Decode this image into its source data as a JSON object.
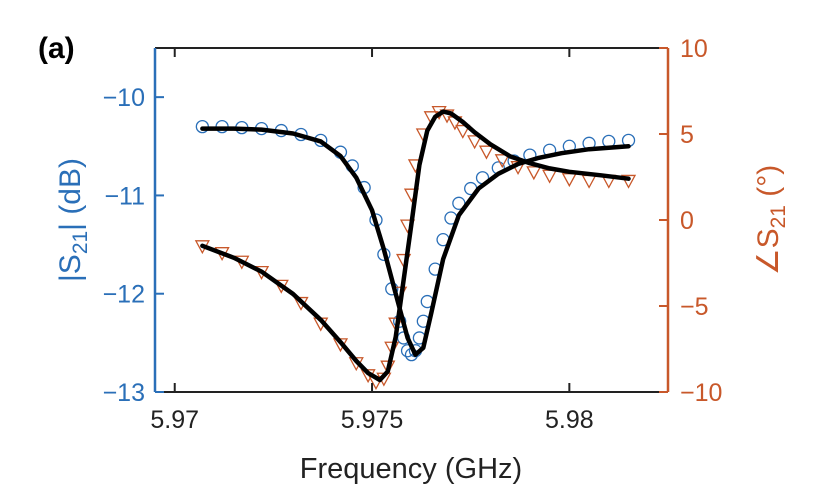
{
  "chart_data": {
    "type": "line",
    "panel_label": "(a)",
    "xlabel": "Frequency (GHz)",
    "ylabel_left": {
      "prefix": "|S",
      "sub": "21",
      "suffix": "| (dB)"
    },
    "ylabel_right": {
      "prefix": "∠S",
      "sub": "21",
      "suffix": " (°)"
    },
    "xlim": [
      5.9695,
      5.9825
    ],
    "ylim_left": [
      -13,
      -9.5
    ],
    "ylim_right": [
      -10,
      10
    ],
    "xticks": [
      5.97,
      5.975,
      5.98
    ],
    "xtick_labels": [
      "5.97",
      "5.975",
      "5.98"
    ],
    "yticks_left": [
      -13,
      -12,
      -11,
      -10
    ],
    "ytick_labels_left": [
      "−13",
      "−12",
      "−11",
      "−10"
    ],
    "yticks_right": [
      -10,
      -5,
      0,
      5,
      10
    ],
    "ytick_labels_right": [
      "−10",
      "−5",
      "0",
      "5",
      "10"
    ],
    "colors": {
      "left_axis": "#2a6fb8",
      "right_axis": "#c8582a",
      "fit": "#000000",
      "frame": "#222222"
    },
    "series": [
      {
        "axis": "left",
        "style": "marker-circle",
        "x": [
          5.9707,
          5.9712,
          5.9717,
          5.9722,
          5.9727,
          5.9732,
          5.9737,
          5.9742,
          5.9745,
          5.9748,
          5.9751,
          5.9753,
          5.9755,
          5.9757,
          5.9758,
          5.9759,
          5.976,
          5.9761,
          5.9762,
          5.9763,
          5.9764,
          5.9766,
          5.9768,
          5.977,
          5.9772,
          5.9775,
          5.9778,
          5.9782,
          5.9786,
          5.979,
          5.9795,
          5.98,
          5.9805,
          5.981,
          5.9815
        ],
        "y": [
          -10.3,
          -10.3,
          -10.31,
          -10.32,
          -10.34,
          -10.38,
          -10.44,
          -10.56,
          -10.7,
          -10.92,
          -11.25,
          -11.6,
          -11.95,
          -12.28,
          -12.45,
          -12.58,
          -12.62,
          -12.58,
          -12.45,
          -12.28,
          -12.08,
          -11.75,
          -11.45,
          -11.23,
          -11.08,
          -10.93,
          -10.82,
          -10.72,
          -10.65,
          -10.59,
          -10.54,
          -10.5,
          -10.47,
          -10.45,
          -10.44
        ]
      },
      {
        "axis": "right",
        "style": "marker-triangle-down",
        "x": [
          5.9707,
          5.9712,
          5.9717,
          5.9722,
          5.9727,
          5.9732,
          5.9737,
          5.9742,
          5.9746,
          5.9749,
          5.9751,
          5.9753,
          5.9754,
          5.9755,
          5.9756,
          5.9757,
          5.9758,
          5.9759,
          5.976,
          5.9761,
          5.9763,
          5.9765,
          5.9767,
          5.9769,
          5.9771,
          5.9773,
          5.9776,
          5.9779,
          5.9783,
          5.9787,
          5.9791,
          5.9795,
          5.98,
          5.9805,
          5.981,
          5.9815
        ],
        "y": [
          -1.5,
          -1.9,
          -2.4,
          -3.0,
          -3.8,
          -4.8,
          -6.0,
          -7.2,
          -8.3,
          -9.0,
          -9.4,
          -9.2,
          -8.5,
          -7.4,
          -6.0,
          -4.2,
          -2.3,
          -0.3,
          1.5,
          3.2,
          5.0,
          6.0,
          6.3,
          6.1,
          5.7,
          5.2,
          4.6,
          4.0,
          3.5,
          3.1,
          2.8,
          2.6,
          2.4,
          2.3,
          2.3,
          2.3
        ]
      },
      {
        "axis": "left",
        "style": "fit-line",
        "x": [
          5.9707,
          5.9715,
          5.9722,
          5.973,
          5.9737,
          5.9742,
          5.9746,
          5.975,
          5.9753,
          5.9756,
          5.9759,
          5.9761,
          5.9763,
          5.9765,
          5.9768,
          5.9772,
          5.9777,
          5.9782,
          5.9787,
          5.9792,
          5.9798,
          5.9805,
          5.9815
        ],
        "y": [
          -10.32,
          -10.32,
          -10.33,
          -10.37,
          -10.45,
          -10.6,
          -10.82,
          -11.15,
          -11.55,
          -12.0,
          -12.45,
          -12.62,
          -12.55,
          -12.2,
          -11.65,
          -11.2,
          -10.93,
          -10.78,
          -10.68,
          -10.62,
          -10.57,
          -10.53,
          -10.5
        ]
      },
      {
        "axis": "right",
        "style": "fit-line",
        "x": [
          5.9707,
          5.9715,
          5.9722,
          5.973,
          5.9737,
          5.9742,
          5.9746,
          5.9749,
          5.9752,
          5.9754,
          5.9756,
          5.9758,
          5.976,
          5.9762,
          5.9764,
          5.9766,
          5.9768,
          5.977,
          5.9773,
          5.9776,
          5.978,
          5.9785,
          5.979,
          5.9795,
          5.98,
          5.9808,
          5.9815
        ],
        "y": [
          -1.5,
          -2.2,
          -3.0,
          -4.3,
          -5.8,
          -7.1,
          -8.2,
          -8.9,
          -9.3,
          -8.8,
          -6.8,
          -3.5,
          -0.2,
          3.2,
          5.2,
          6.0,
          6.3,
          6.2,
          5.7,
          5.1,
          4.4,
          3.7,
          3.3,
          3.0,
          2.8,
          2.6,
          2.4
        ]
      }
    ]
  }
}
